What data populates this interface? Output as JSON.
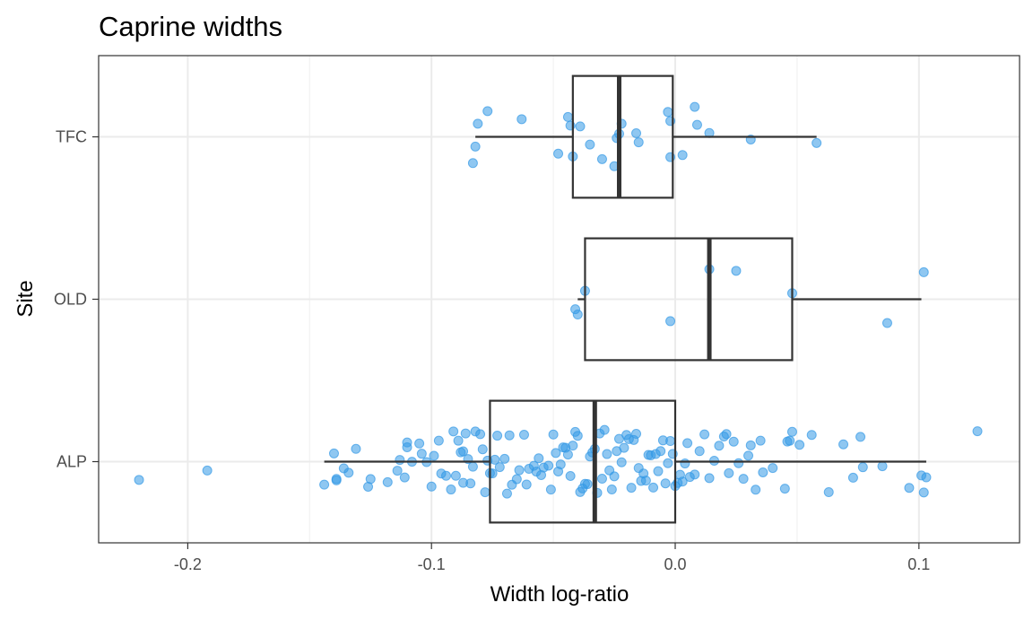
{
  "chart_data": {
    "type": "boxplot",
    "orientation": "horizontal",
    "title": "Caprine widths",
    "xlabel": "Width log-ratio",
    "ylabel": "Site",
    "xlim": [
      -0.236,
      0.141
    ],
    "xticks": [
      -0.2,
      -0.1,
      0.0,
      0.1
    ],
    "xtick_labels": [
      "-0.2",
      "-0.1",
      "0.0",
      "0.1"
    ],
    "categories": [
      "ALP",
      "OLD",
      "TFC"
    ],
    "grid": true,
    "point_color": "#3399e6",
    "box_color": "#333333",
    "boxes": [
      {
        "site": "ALP",
        "whisker_low": -0.144,
        "q1": -0.076,
        "median": -0.033,
        "q3": 0.0,
        "whisker_high": 0.103
      },
      {
        "site": "OLD",
        "whisker_low": -0.04,
        "q1": -0.037,
        "median": 0.014,
        "q3": 0.048,
        "whisker_high": 0.101
      },
      {
        "site": "TFC",
        "whisker_low": -0.082,
        "q1": -0.042,
        "median": -0.023,
        "q3": -0.001,
        "whisker_high": 0.058
      }
    ],
    "points": [
      {
        "site": "TFC",
        "values": [
          -0.082,
          -0.083,
          -0.081,
          -0.077,
          -0.063,
          -0.048,
          -0.044,
          -0.043,
          -0.042,
          -0.039,
          -0.035,
          -0.03,
          -0.025,
          -0.024,
          -0.022,
          -0.023,
          -0.016,
          -0.015,
          -0.002,
          -0.002,
          -0.003,
          0.003,
          0.008,
          0.009,
          0.014,
          0.031,
          0.058
        ]
      },
      {
        "site": "OLD",
        "values": [
          -0.041,
          -0.04,
          -0.037,
          -0.002,
          0.014,
          0.025,
          0.048,
          0.087,
          0.102
        ]
      },
      {
        "site": "ALP",
        "values": [
          -0.22,
          -0.192,
          -0.144,
          -0.14,
          -0.139,
          -0.139,
          -0.136,
          -0.134,
          -0.131,
          -0.126,
          -0.125,
          -0.118,
          -0.114,
          -0.113,
          -0.111,
          -0.11,
          -0.11,
          -0.108,
          -0.105,
          -0.104,
          -0.102,
          -0.1,
          -0.099,
          -0.097,
          -0.096,
          -0.094,
          -0.092,
          -0.091,
          -0.09,
          -0.089,
          -0.088,
          -0.087,
          -0.087,
          -0.086,
          -0.085,
          -0.084,
          -0.083,
          -0.082,
          -0.08,
          -0.079,
          -0.078,
          -0.077,
          -0.076,
          -0.075,
          -0.074,
          -0.073,
          -0.072,
          -0.07,
          -0.069,
          -0.068,
          -0.067,
          -0.065,
          -0.064,
          -0.062,
          -0.061,
          -0.06,
          -0.058,
          -0.057,
          -0.056,
          -0.055,
          -0.054,
          -0.052,
          -0.051,
          -0.05,
          -0.049,
          -0.048,
          -0.047,
          -0.046,
          -0.045,
          -0.044,
          -0.043,
          -0.042,
          -0.041,
          -0.04,
          -0.039,
          -0.038,
          -0.037,
          -0.036,
          -0.035,
          -0.034,
          -0.033,
          -0.032,
          -0.031,
          -0.03,
          -0.029,
          -0.028,
          -0.027,
          -0.026,
          -0.025,
          -0.024,
          -0.023,
          -0.022,
          -0.021,
          -0.02,
          -0.019,
          -0.018,
          -0.017,
          -0.016,
          -0.015,
          -0.014,
          -0.013,
          -0.012,
          -0.011,
          -0.01,
          -0.009,
          -0.008,
          -0.007,
          -0.006,
          -0.005,
          -0.004,
          -0.003,
          -0.002,
          -0.001,
          0.0,
          0.001,
          0.002,
          0.003,
          0.004,
          0.005,
          0.006,
          0.008,
          0.01,
          0.012,
          0.014,
          0.016,
          0.018,
          0.02,
          0.021,
          0.022,
          0.024,
          0.026,
          0.028,
          0.03,
          0.031,
          0.033,
          0.035,
          0.036,
          0.04,
          0.045,
          0.046,
          0.047,
          0.048,
          0.051,
          0.056,
          0.063,
          0.069,
          0.073,
          0.076,
          0.077,
          0.085,
          0.096,
          0.101,
          0.102,
          0.103,
          0.124
        ]
      }
    ]
  }
}
